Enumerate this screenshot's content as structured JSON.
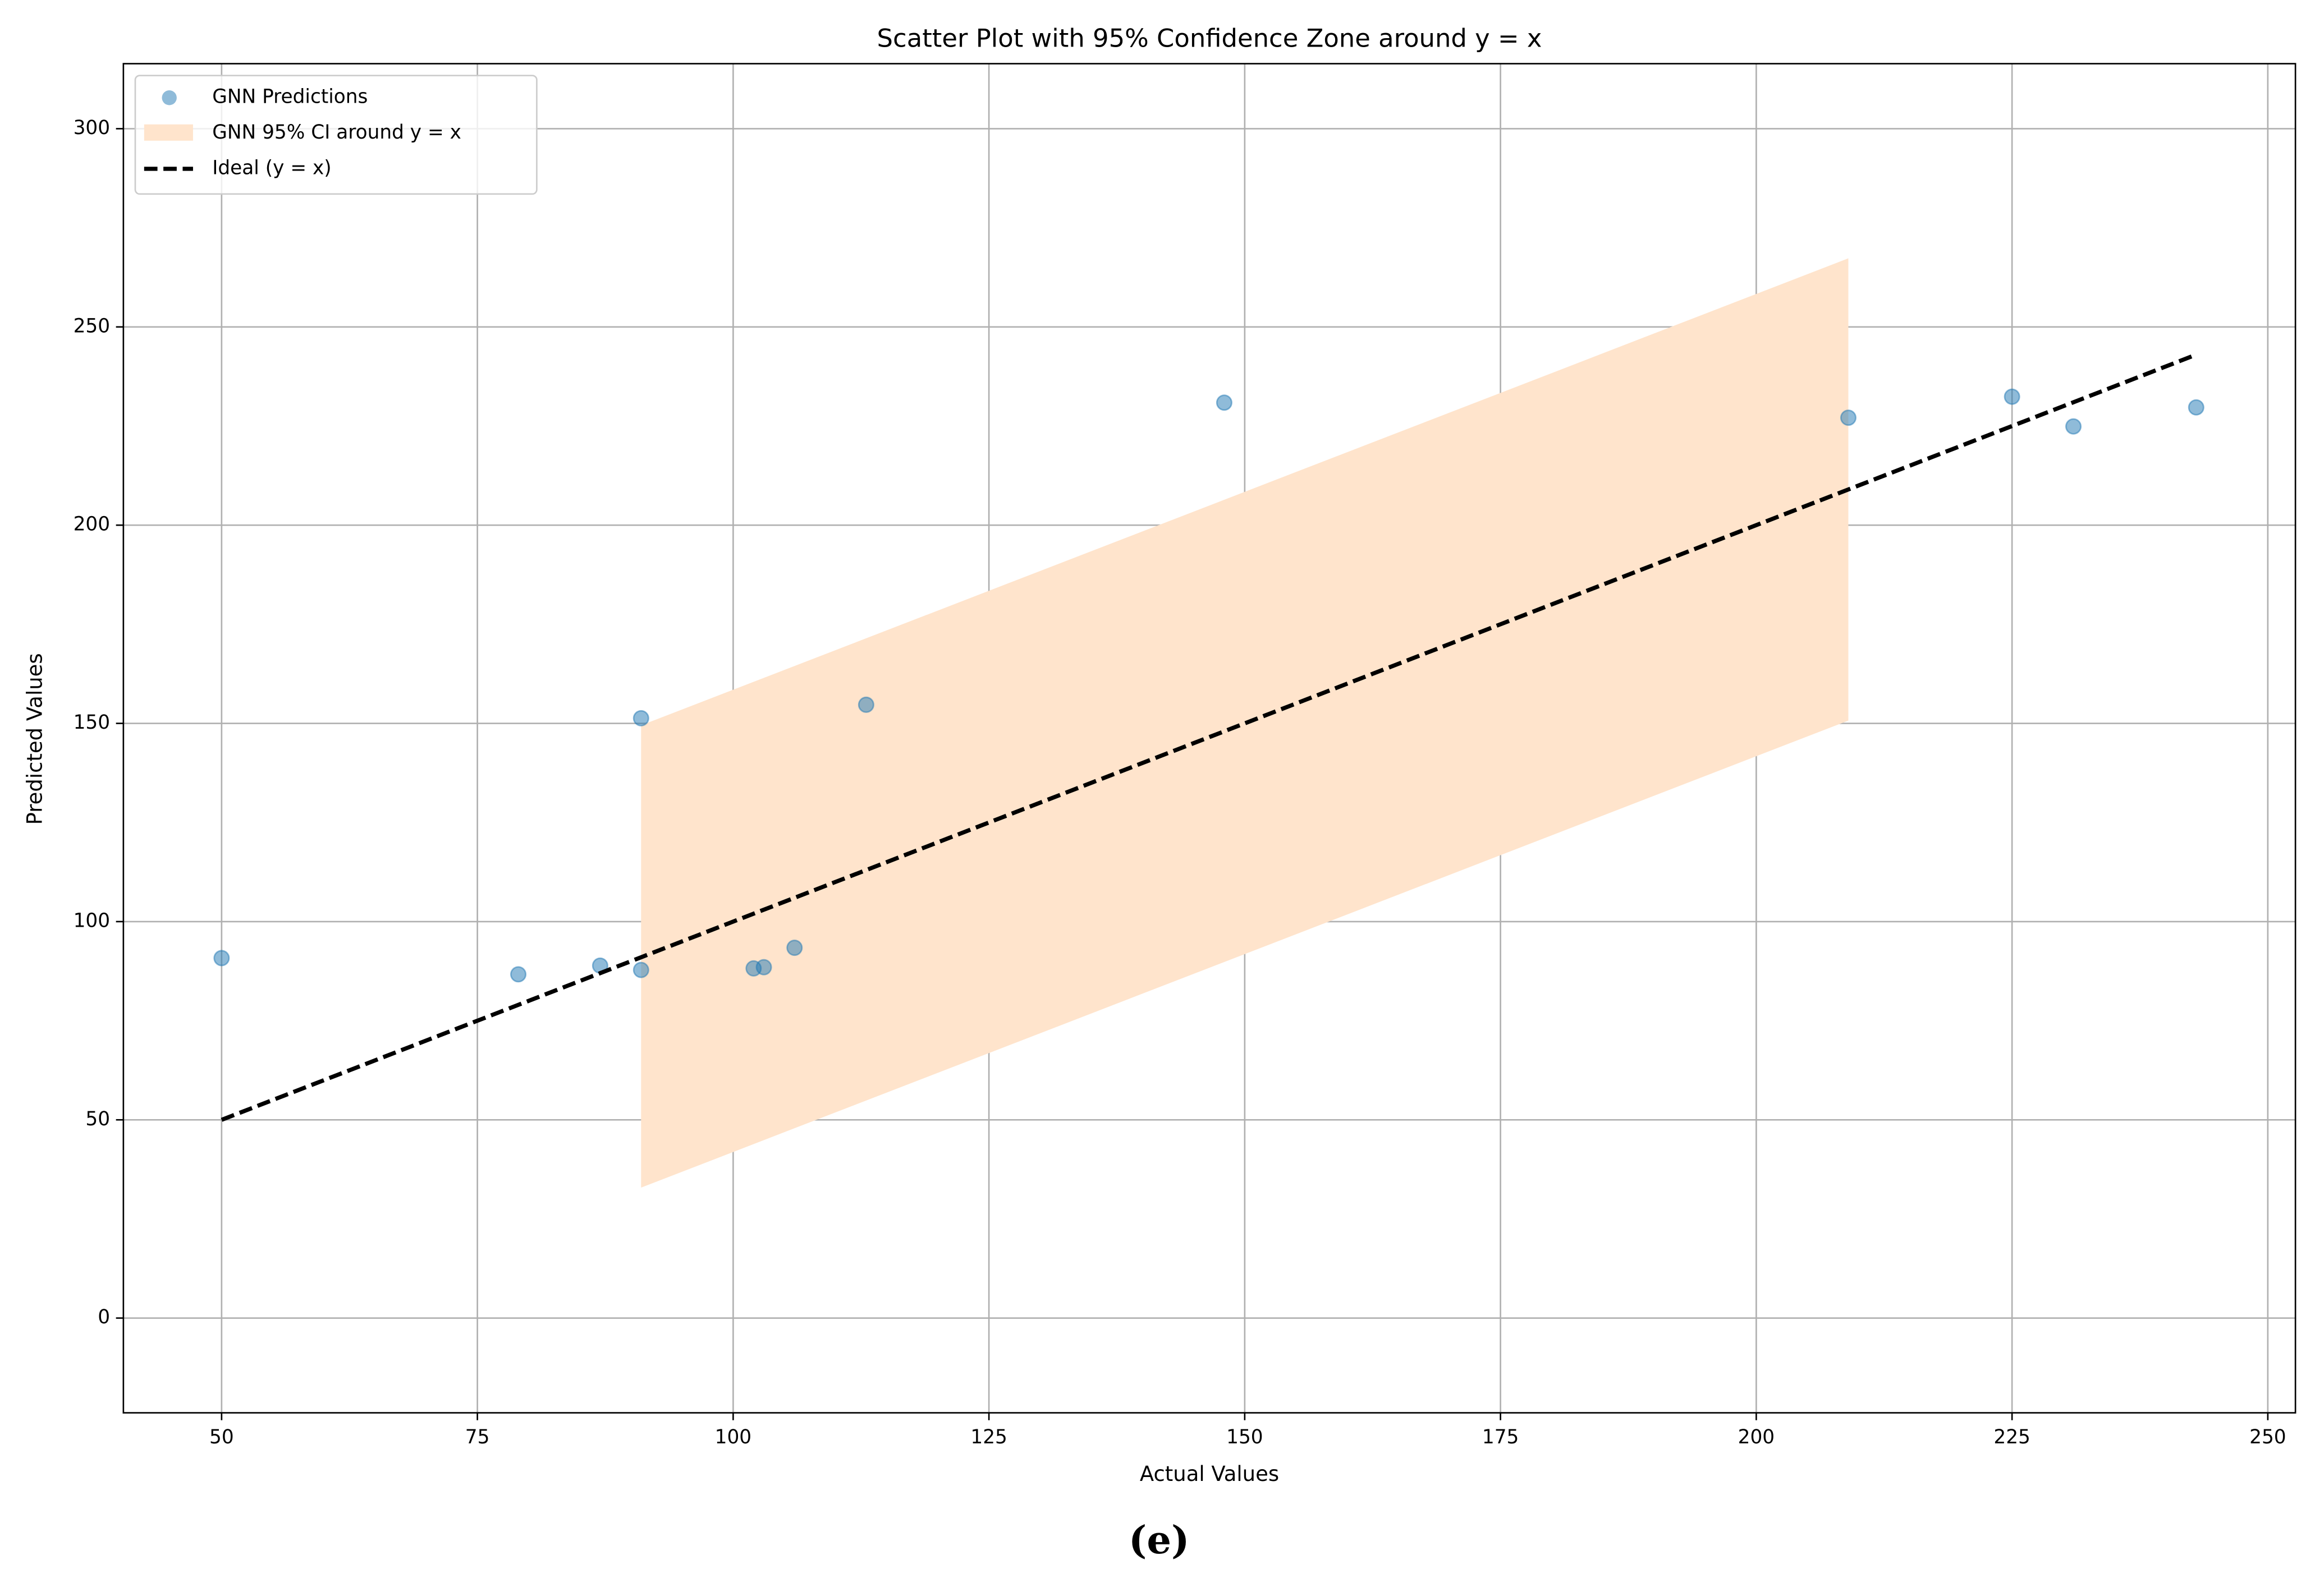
{
  "chart_data": {
    "type": "scatter",
    "title": "Scatter Plot with 95% Confidence Zone around y = x",
    "x_label": "Actual Values",
    "y_label": "Predicted Values",
    "caption": "(e)",
    "xlim": [
      40.4,
      252.7
    ],
    "ylim": [
      -23.9,
      316.4
    ],
    "xticks": [
      50,
      75,
      100,
      125,
      150,
      175,
      200,
      225,
      250
    ],
    "yticks": [
      0,
      50,
      100,
      150,
      200,
      250,
      300
    ],
    "grid": true,
    "legend": "upper left",
    "series": [
      {
        "name": "GNN Predictions",
        "color": "#1f77b4",
        "x": [
          50,
          79,
          87,
          91,
          91,
          102,
          103,
          106,
          113,
          148,
          209,
          225,
          231,
          243
        ],
        "values": [
          90.8,
          86.7,
          88.9,
          87.8,
          151.3,
          88.2,
          88.5,
          93.4,
          154.7,
          230.9,
          227.1,
          232.4,
          224.9,
          229.7
        ]
      }
    ],
    "band": {
      "name": "GNN 95% CI around y = x",
      "color": "#ffe4cc",
      "x": [
        91,
        209
      ],
      "lower": [
        32.9,
        150.7
      ],
      "upper": [
        149.5,
        267.3
      ]
    },
    "line": {
      "name": "Ideal (y = x)",
      "color": "#000000",
      "x": [
        50,
        243
      ],
      "values": [
        50,
        243
      ]
    }
  }
}
